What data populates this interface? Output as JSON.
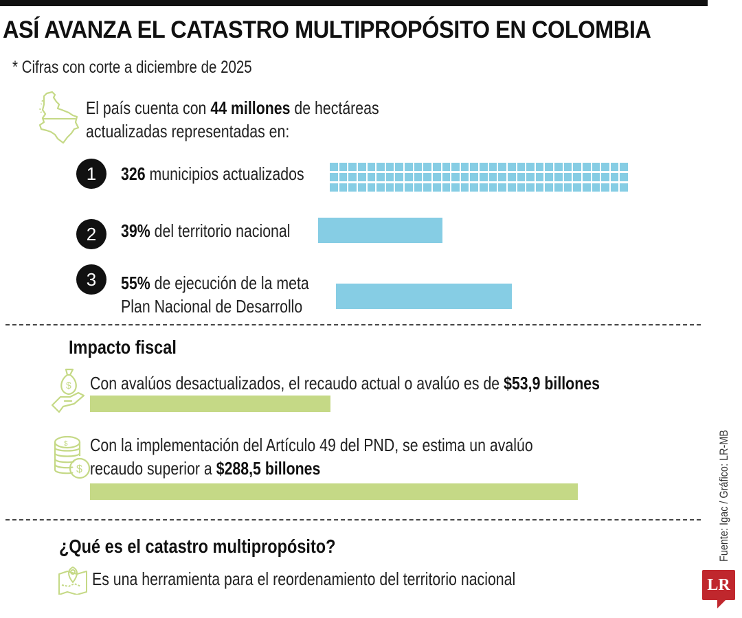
{
  "header": {
    "title": "ASÍ AVANZA EL CATASTRO MULTIPROPÓSITO EN COLOMBIA",
    "subtitle": "* Cifras con corte a diciembre de 2025"
  },
  "intro": {
    "icon": "colombia-map-icon",
    "line1_pre": "El país cuenta con ",
    "line1_bold": "44 millones",
    "line1_post": " de hectáreas",
    "line2": "actualizadas representadas en:"
  },
  "items": [
    {
      "number": "1",
      "value": "326",
      "label": " municipios actualizados",
      "label2": ""
    },
    {
      "number": "2",
      "value": "39%",
      "label": " del territorio nacional",
      "label2": ""
    },
    {
      "number": "3",
      "value": "55%",
      "label": " de ejecución de la meta",
      "label2": "Plan Nacional de Desarrollo"
    }
  ],
  "fiscal": {
    "heading": "Impacto fiscal",
    "row1": {
      "icon": "money-bag-hand-icon",
      "text_pre": "Con avalúos desactualizados, el recaudo actual o avalúo es de ",
      "text_bold": "$53,9 billones"
    },
    "row2": {
      "icon": "coin-stack-icon",
      "line1": "Con la implementación del Artículo 49 del PND, se estima un avalúo",
      "line2_pre": "recaudo superior a ",
      "line2_bold": "$288,5 billones"
    }
  },
  "definition": {
    "heading": "¿Qué es el catastro multipropósito?",
    "icon": "map-pin-icon",
    "text": "Es una herramienta para el reordenamiento del territorio nacional"
  },
  "footer": {
    "source": "Fuente: Igac / Gráfico: LR-MB",
    "logo": "LR"
  },
  "colors": {
    "blue_bar": "#86cde4",
    "green_bar": "#c5d986",
    "icon_green": "#c5d986",
    "logo_red": "#c0272d",
    "text": "#1a1a1a"
  },
  "chart_data": [
    {
      "type": "bar",
      "title": "El país cuenta con 44 millones de hectáreas actualizadas representadas en:",
      "categories": [
        "Municipios actualizados",
        "Territorio nacional",
        "Ejecución meta Plan Nacional de Desarrollo"
      ],
      "values": [
        326,
        39,
        55
      ],
      "units": [
        "municipios",
        "%",
        "%"
      ],
      "grid_cells": {
        "rows": 3,
        "columns": 32
      },
      "color": "#86cde4"
    },
    {
      "type": "bar",
      "title": "Impacto fiscal",
      "categories": [
        "Recaudo actual / avalúo (desactualizado)",
        "Avalúo recaudo estimado con Artículo 49 del PND"
      ],
      "values": [
        53.9,
        288.5
      ],
      "ylabel": "billones de pesos",
      "color": "#c5d986"
    }
  ]
}
